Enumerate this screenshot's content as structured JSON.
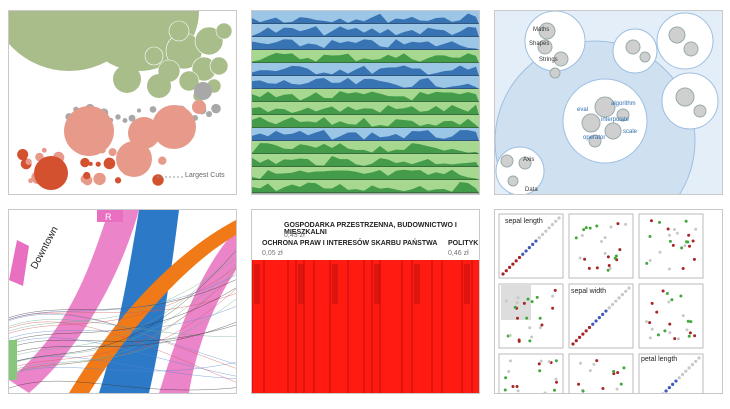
{
  "tiles": {
    "budget_bubbles": {
      "annotation": "Largest Cuts",
      "colors": {
        "green": "#a9bd8b",
        "salmon": "#e89a8a",
        "red": "#d3512f",
        "grey": "#a8a8a8"
      }
    },
    "horizon": {
      "colors": {
        "blue_dark": "#1f5fa8",
        "blue_light": "#9cc6e6",
        "green_dark": "#2c8c3a",
        "green_light": "#a6d98f"
      }
    },
    "circle_pack": {
      "labels": [
        "Maths",
        "Shapes",
        "Strings",
        "Axis",
        "Data"
      ],
      "link_labels": [
        "algorithm",
        "eval",
        "interpolate",
        "operator",
        "scale"
      ]
    },
    "chord": {
      "labels": [
        "Downtown",
        "R"
      ],
      "colors": {
        "pink": "#e96fc0",
        "blue": "#2c79c7",
        "orange": "#f07a18",
        "green": "#86c77c"
      }
    },
    "treemap": {
      "items": [
        {
          "label": "GOSPODARKA PRZESTRZENNA, BUDOWNICTWO I MIESZKALNI",
          "value": "0,43 zł"
        },
        {
          "label": "OCHRONA PRAW I INTERESÓW SKARBU PAŃSTWA",
          "value": "0,05 zł"
        },
        {
          "label": "POLITYK",
          "value": "0,46 zł"
        }
      ],
      "color": "#ff1a12"
    },
    "scatter_matrix": {
      "labels": [
        "sepal length",
        "sepal width",
        "petal length"
      ],
      "colors": {
        "red": "#a62626",
        "green": "#42a83d",
        "blue": "#3e59b8",
        "grey": "#c8c8c8"
      }
    }
  }
}
